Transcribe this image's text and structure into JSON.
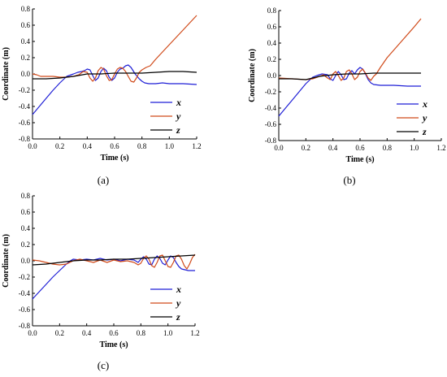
{
  "chart_data": [
    {
      "type": "line",
      "panel_label": "(a)",
      "xlabel": "Time (s)",
      "ylabel": "Coordinate (m)",
      "xlim": [
        0,
        1.2
      ],
      "ylim": [
        -0.8,
        0.8
      ],
      "xticks": [
        "0.0",
        "0.2",
        "0.4",
        "0.6",
        "0.8",
        "1.0",
        "1.2"
      ],
      "yticks": [
        "-0.8",
        "-0.6",
        "-0.4",
        "-0.2",
        "0.0",
        "0.2",
        "0.4",
        "0.6",
        "0.8"
      ],
      "legend_position": "bottom-right",
      "series": [
        {
          "name": "x",
          "color": "#1f1fd6",
          "points": [
            [
              0,
              -0.5
            ],
            [
              0.05,
              -0.4
            ],
            [
              0.1,
              -0.3
            ],
            [
              0.15,
              -0.2
            ],
            [
              0.2,
              -0.11
            ],
            [
              0.25,
              -0.03
            ],
            [
              0.3,
              0.0
            ],
            [
              0.33,
              0.02
            ],
            [
              0.36,
              0.03
            ],
            [
              0.38,
              0.04
            ],
            [
              0.4,
              0.06
            ],
            [
              0.42,
              0.05
            ],
            [
              0.44,
              -0.02
            ],
            [
              0.46,
              -0.08
            ],
            [
              0.48,
              -0.05
            ],
            [
              0.5,
              0.03
            ],
            [
              0.52,
              0.07
            ],
            [
              0.54,
              0.04
            ],
            [
              0.56,
              -0.04
            ],
            [
              0.58,
              -0.08
            ],
            [
              0.6,
              -0.05
            ],
            [
              0.62,
              0.02
            ],
            [
              0.64,
              0.06
            ],
            [
              0.66,
              0.07
            ],
            [
              0.68,
              0.1
            ],
            [
              0.7,
              0.11
            ],
            [
              0.72,
              0.08
            ],
            [
              0.75,
              0.0
            ],
            [
              0.78,
              -0.06
            ],
            [
              0.8,
              -0.09
            ],
            [
              0.82,
              -0.11
            ],
            [
              0.85,
              -0.12
            ],
            [
              0.9,
              -0.12
            ],
            [
              0.95,
              -0.11
            ],
            [
              1.0,
              -0.12
            ],
            [
              1.1,
              -0.12
            ],
            [
              1.2,
              -0.13
            ]
          ]
        },
        {
          "name": "y",
          "color": "#d04a1a",
          "points": [
            [
              0,
              0.0
            ],
            [
              0.03,
              -0.01
            ],
            [
              0.06,
              -0.03
            ],
            [
              0.1,
              -0.03
            ],
            [
              0.15,
              -0.03
            ],
            [
              0.2,
              -0.04
            ],
            [
              0.25,
              -0.04
            ],
            [
              0.3,
              -0.03
            ],
            [
              0.34,
              -0.01
            ],
            [
              0.37,
              0.03
            ],
            [
              0.4,
              0.02
            ],
            [
              0.42,
              -0.05
            ],
            [
              0.44,
              -0.09
            ],
            [
              0.46,
              -0.05
            ],
            [
              0.48,
              0.04
            ],
            [
              0.5,
              0.08
            ],
            [
              0.52,
              0.06
            ],
            [
              0.54,
              -0.02
            ],
            [
              0.56,
              -0.08
            ],
            [
              0.58,
              -0.07
            ],
            [
              0.6,
              0.0
            ],
            [
              0.62,
              0.06
            ],
            [
              0.64,
              0.08
            ],
            [
              0.66,
              0.07
            ],
            [
              0.68,
              0.03
            ],
            [
              0.7,
              -0.03
            ],
            [
              0.72,
              -0.09
            ],
            [
              0.74,
              -0.1
            ],
            [
              0.76,
              -0.05
            ],
            [
              0.78,
              0.02
            ],
            [
              0.8,
              0.05
            ],
            [
              0.83,
              0.08
            ],
            [
              0.86,
              0.1
            ],
            [
              0.9,
              0.18
            ],
            [
              1.0,
              0.36
            ],
            [
              1.1,
              0.54
            ],
            [
              1.2,
              0.72
            ]
          ]
        },
        {
          "name": "z",
          "color": "#000000",
          "points": [
            [
              0,
              -0.06
            ],
            [
              0.1,
              -0.06
            ],
            [
              0.2,
              -0.05
            ],
            [
              0.3,
              -0.03
            ],
            [
              0.4,
              0.0
            ],
            [
              0.5,
              0.0
            ],
            [
              0.6,
              0.01
            ],
            [
              0.7,
              0.01
            ],
            [
              0.8,
              0.01
            ],
            [
              0.9,
              0.02
            ],
            [
              1.0,
              0.03
            ],
            [
              1.1,
              0.03
            ],
            [
              1.2,
              0.02
            ]
          ]
        }
      ]
    },
    {
      "type": "line",
      "panel_label": "(b)",
      "xlabel": "Time (s)",
      "ylabel": "Coordinate (m)",
      "xlim": [
        0,
        1.2
      ],
      "ylim": [
        -0.8,
        0.8
      ],
      "xticks": [
        "0.0",
        "0.2",
        "0.4",
        "0.6",
        "0.8",
        "1.0",
        "1.2"
      ],
      "yticks": [
        "-0.8",
        "-0.6",
        "-0.4",
        "-0.2",
        "0.0",
        "0.2",
        "0.4",
        "0.6",
        "0.8"
      ],
      "legend_position": "bottom-right",
      "series": [
        {
          "name": "x",
          "color": "#1f1fd6",
          "points": [
            [
              0,
              -0.5
            ],
            [
              0.05,
              -0.4
            ],
            [
              0.1,
              -0.3
            ],
            [
              0.15,
              -0.2
            ],
            [
              0.2,
              -0.1
            ],
            [
              0.25,
              -0.02
            ],
            [
              0.28,
              0.0
            ],
            [
              0.32,
              0.02
            ],
            [
              0.36,
              0.01
            ],
            [
              0.38,
              -0.04
            ],
            [
              0.4,
              -0.06
            ],
            [
              0.42,
              0.0
            ],
            [
              0.44,
              0.05
            ],
            [
              0.46,
              0.01
            ],
            [
              0.48,
              -0.05
            ],
            [
              0.5,
              -0.04
            ],
            [
              0.52,
              0.03
            ],
            [
              0.54,
              0.06
            ],
            [
              0.56,
              0.02
            ],
            [
              0.58,
              0.07
            ],
            [
              0.6,
              0.1
            ],
            [
              0.62,
              0.08
            ],
            [
              0.64,
              0.02
            ],
            [
              0.66,
              -0.05
            ],
            [
              0.68,
              -0.09
            ],
            [
              0.7,
              -0.11
            ],
            [
              0.75,
              -0.12
            ],
            [
              0.85,
              -0.12
            ],
            [
              0.95,
              -0.13
            ],
            [
              1.05,
              -0.13
            ]
          ]
        },
        {
          "name": "y",
          "color": "#d04a1a",
          "points": [
            [
              0,
              -0.03
            ],
            [
              0.1,
              -0.04
            ],
            [
              0.2,
              -0.05
            ],
            [
              0.25,
              -0.04
            ],
            [
              0.3,
              -0.01
            ],
            [
              0.33,
              0.01
            ],
            [
              0.36,
              -0.03
            ],
            [
              0.38,
              -0.05
            ],
            [
              0.4,
              0.02
            ],
            [
              0.42,
              0.05
            ],
            [
              0.44,
              0.0
            ],
            [
              0.46,
              -0.06
            ],
            [
              0.48,
              -0.03
            ],
            [
              0.5,
              0.05
            ],
            [
              0.52,
              0.07
            ],
            [
              0.54,
              0.02
            ],
            [
              0.56,
              -0.05
            ],
            [
              0.58,
              -0.02
            ],
            [
              0.6,
              0.05
            ],
            [
              0.62,
              0.08
            ],
            [
              0.64,
              0.03
            ],
            [
              0.66,
              -0.03
            ],
            [
              0.68,
              -0.06
            ],
            [
              0.7,
              -0.01
            ],
            [
              0.72,
              0.02
            ],
            [
              0.75,
              0.1
            ],
            [
              0.8,
              0.22
            ],
            [
              0.9,
              0.41
            ],
            [
              1.0,
              0.6
            ],
            [
              1.05,
              0.7
            ]
          ]
        },
        {
          "name": "z",
          "color": "#000000",
          "points": [
            [
              0,
              -0.04
            ],
            [
              0.1,
              -0.04
            ],
            [
              0.2,
              -0.05
            ],
            [
              0.3,
              -0.01
            ],
            [
              0.4,
              0.01
            ],
            [
              0.5,
              0.02
            ],
            [
              0.6,
              0.02
            ],
            [
              0.7,
              0.03
            ],
            [
              0.8,
              0.03
            ],
            [
              0.9,
              0.03
            ],
            [
              1.0,
              0.03
            ],
            [
              1.05,
              0.03
            ]
          ]
        }
      ]
    },
    {
      "type": "line",
      "panel_label": "(c)",
      "xlabel": "Time (s)",
      "ylabel": "Coordinate (m)",
      "xlim": [
        0,
        1.2
      ],
      "ylim": [
        -0.8,
        0.8
      ],
      "xticks": [
        "0.0",
        "0.2",
        "0.4",
        "0.6",
        "0.8",
        "1.0",
        "1.2"
      ],
      "yticks": [
        "-0.8",
        "-0.6",
        "-0.4",
        "-0.2",
        "0.0",
        "0.2",
        "0.4",
        "0.6",
        "0.8"
      ],
      "legend_position": "bottom-right",
      "series": [
        {
          "name": "x",
          "color": "#1f1fd6",
          "points": [
            [
              0,
              -0.47
            ],
            [
              0.05,
              -0.38
            ],
            [
              0.1,
              -0.29
            ],
            [
              0.15,
              -0.2
            ],
            [
              0.2,
              -0.12
            ],
            [
              0.25,
              -0.04
            ],
            [
              0.28,
              0.0
            ],
            [
              0.3,
              0.02
            ],
            [
              0.35,
              0.01
            ],
            [
              0.4,
              0.02
            ],
            [
              0.45,
              0.01
            ],
            [
              0.5,
              0.03
            ],
            [
              0.55,
              0.01
            ],
            [
              0.6,
              0.02
            ],
            [
              0.65,
              0.0
            ],
            [
              0.7,
              0.02
            ],
            [
              0.75,
              0.01
            ],
            [
              0.78,
              -0.02
            ],
            [
              0.8,
              0.02
            ],
            [
              0.82,
              0.05
            ],
            [
              0.84,
              0.02
            ],
            [
              0.86,
              -0.04
            ],
            [
              0.88,
              -0.05
            ],
            [
              0.9,
              0.02
            ],
            [
              0.92,
              0.06
            ],
            [
              0.94,
              0.03
            ],
            [
              0.96,
              -0.03
            ],
            [
              0.98,
              -0.05
            ],
            [
              1.0,
              0.01
            ],
            [
              1.02,
              0.06
            ],
            [
              1.04,
              0.04
            ],
            [
              1.06,
              -0.02
            ],
            [
              1.08,
              -0.07
            ],
            [
              1.1,
              -0.1
            ],
            [
              1.15,
              -0.12
            ],
            [
              1.2,
              -0.12
            ]
          ]
        },
        {
          "name": "y",
          "color": "#d04a1a",
          "points": [
            [
              0,
              0.01
            ],
            [
              0.05,
              0.0
            ],
            [
              0.1,
              -0.02
            ],
            [
              0.15,
              -0.04
            ],
            [
              0.2,
              -0.05
            ],
            [
              0.25,
              -0.04
            ],
            [
              0.3,
              0.0
            ],
            [
              0.35,
              0.02
            ],
            [
              0.4,
              0.0
            ],
            [
              0.45,
              -0.02
            ],
            [
              0.5,
              0.01
            ],
            [
              0.55,
              -0.02
            ],
            [
              0.6,
              0.01
            ],
            [
              0.65,
              -0.01
            ],
            [
              0.7,
              0.0
            ],
            [
              0.75,
              -0.02
            ],
            [
              0.78,
              -0.05
            ],
            [
              0.8,
              -0.03
            ],
            [
              0.82,
              0.03
            ],
            [
              0.84,
              0.06
            ],
            [
              0.86,
              0.02
            ],
            [
              0.88,
              -0.06
            ],
            [
              0.9,
              -0.08
            ],
            [
              0.92,
              -0.02
            ],
            [
              0.94,
              0.06
            ],
            [
              0.96,
              0.07
            ],
            [
              0.98,
              0.0
            ],
            [
              1.0,
              -0.07
            ],
            [
              1.02,
              -0.08
            ],
            [
              1.04,
              -0.02
            ],
            [
              1.06,
              0.06
            ],
            [
              1.08,
              0.07
            ],
            [
              1.1,
              0.02
            ],
            [
              1.12,
              -0.06
            ],
            [
              1.14,
              -0.1
            ],
            [
              1.16,
              -0.04
            ],
            [
              1.18,
              0.04
            ],
            [
              1.2,
              0.08
            ]
          ]
        },
        {
          "name": "z",
          "color": "#000000",
          "points": [
            [
              0,
              -0.05
            ],
            [
              0.1,
              -0.04
            ],
            [
              0.2,
              -0.02
            ],
            [
              0.3,
              0.0
            ],
            [
              0.4,
              0.01
            ],
            [
              0.5,
              0.01
            ],
            [
              0.6,
              0.02
            ],
            [
              0.7,
              0.02
            ],
            [
              0.8,
              0.03
            ],
            [
              0.9,
              0.04
            ],
            [
              1.0,
              0.05
            ],
            [
              1.1,
              0.06
            ],
            [
              1.2,
              0.07
            ]
          ]
        }
      ]
    }
  ]
}
